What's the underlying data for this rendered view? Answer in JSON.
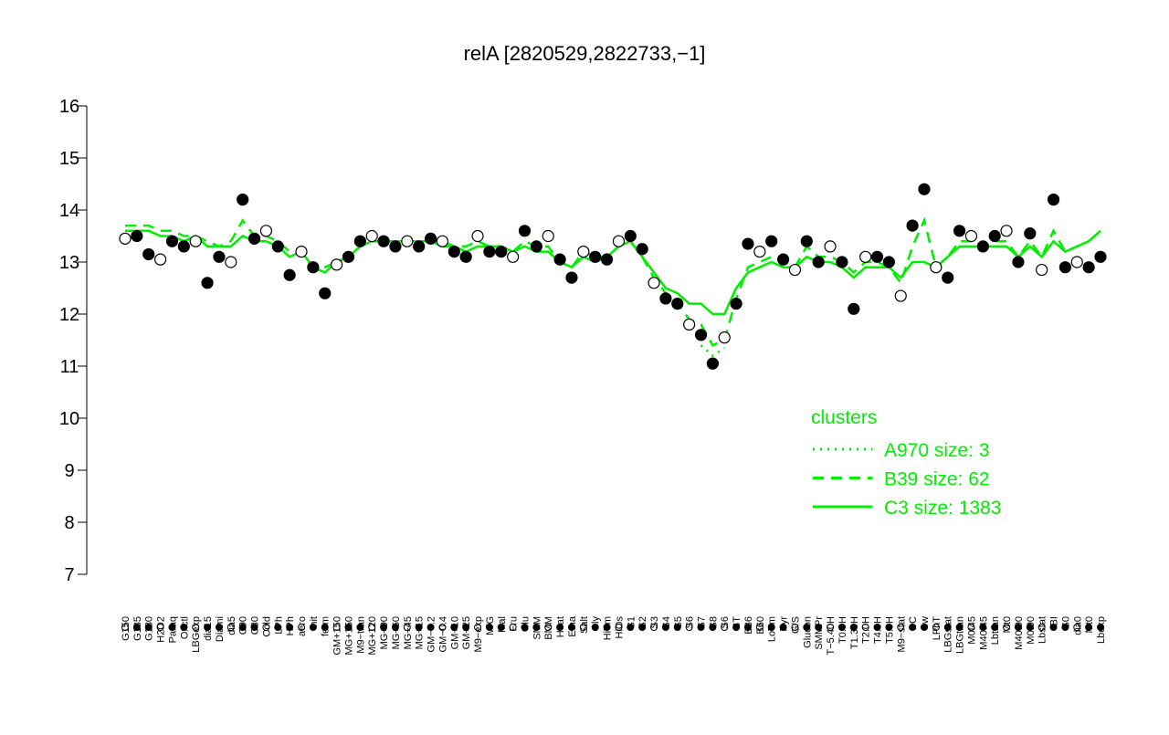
{
  "chart_data": {
    "type": "scatter",
    "title": "relA [2820529,2822733,−1]",
    "categories": [
      "G150",
      "G135",
      "G180",
      "H2O2",
      "Paraq",
      "Oxctl",
      "LBGexp",
      "dia15",
      "Diami",
      "dia5",
      "C90",
      "C30",
      "Cold",
      "LPh",
      "HPh",
      "aero",
      "nit",
      "ferm",
      "GM+150",
      "MG+150",
      "M9−tran",
      "MG+120",
      "MG+90",
      "MG+60",
      "MG+45",
      "MG+15",
      "GM−0.2",
      "GM−0.4",
      "GM+10",
      "GM+25",
      "M9−exp",
      "M/G",
      "Mal",
      "Fru",
      "Glu",
      "SMM",
      "BMM",
      "Heat",
      "Etha",
      "Salt",
      "Gly",
      "HiTm",
      "HiOs",
      "S1",
      "S2",
      "S3",
      "S4",
      "S5",
      "S6",
      "S7",
      "S8",
      "S6",
      "BT",
      "B36",
      "B60",
      "LoTm",
      "Pyr",
      "G/S",
      "Glucon",
      "SMMPr",
      "T−5.40H",
      "T0.0H",
      "T1.30H",
      "T2.0H",
      "T4.0H",
      "T5.0H",
      "M9−stat",
      "BC",
      "Sw",
      "LPhT",
      "LBGstat",
      "LBGtran",
      "M0t45",
      "M40t45",
      "Lbtran",
      "Mt0",
      "M40t90",
      "M0t90",
      "Lbstat",
      "BI",
      "S0",
      "dia0",
      "Mt0",
      "Lbexp"
    ],
    "values": [
      13.45,
      13.5,
      13.15,
      13.05,
      13.4,
      13.3,
      13.4,
      12.6,
      13.1,
      13.0,
      14.2,
      13.45,
      13.6,
      13.3,
      12.75,
      13.2,
      12.9,
      12.4,
      12.95,
      13.1,
      13.4,
      13.5,
      13.4,
      13.3,
      13.4,
      13.3,
      13.45,
      13.4,
      13.2,
      13.1,
      13.5,
      13.2,
      13.2,
      13.1,
      13.6,
      13.3,
      13.5,
      13.05,
      12.7,
      13.2,
      13.1,
      13.05,
      13.4,
      13.5,
      13.25,
      12.6,
      12.3,
      12.2,
      11.8,
      11.6,
      11.05,
      11.55,
      12.2,
      13.35,
      13.2,
      13.4,
      13.05,
      12.85,
      13.4,
      13.0,
      13.3,
      13.0,
      12.1,
      13.1,
      13.1,
      13.0,
      12.35,
      13.7,
      14.4,
      12.9,
      12.7,
      13.6,
      13.5,
      13.3,
      13.5,
      13.6,
      13.0,
      13.55,
      12.85,
      14.2,
      12.9,
      13.0,
      12.9,
      13.1
    ],
    "legend_title": "clusters",
    "legend_color": "#00ee00",
    "series": [
      {
        "name": "A970 size: 3",
        "color": "#00ee00",
        "dash": "2,6",
        "values": [
          null,
          null,
          null,
          null,
          null,
          null,
          null,
          null,
          null,
          null,
          null,
          null,
          null,
          null,
          null,
          null,
          null,
          null,
          null,
          null,
          null,
          null,
          null,
          null,
          null,
          null,
          null,
          null,
          null,
          null,
          null,
          null,
          null,
          null,
          null,
          null,
          null,
          null,
          null,
          null,
          null,
          null,
          null,
          null,
          null,
          null,
          null,
          null,
          null,
          11.4,
          11.2,
          11.35,
          null,
          null,
          null,
          null,
          null,
          null,
          null,
          null,
          null,
          null,
          null,
          null,
          null,
          null,
          null,
          null,
          null,
          null,
          null,
          null,
          null,
          null,
          null,
          null,
          null,
          null,
          null,
          null,
          null,
          null,
          null,
          null
        ]
      },
      {
        "name": "B39 size: 62",
        "color": "#00ee00",
        "dash": "12,8",
        "values": [
          13.7,
          13.7,
          13.7,
          13.6,
          13.6,
          13.5,
          13.5,
          13.4,
          13.3,
          13.4,
          13.8,
          13.5,
          13.5,
          13.4,
          13.2,
          13.2,
          12.9,
          12.9,
          13.0,
          13.1,
          13.3,
          13.4,
          13.4,
          13.4,
          13.4,
          13.4,
          13.4,
          13.4,
          13.3,
          13.3,
          13.4,
          13.3,
          13.3,
          13.2,
          13.4,
          13.3,
          13.3,
          13.0,
          12.9,
          13.2,
          13.1,
          13.1,
          13.3,
          13.4,
          13.1,
          12.7,
          12.4,
          12.2,
          11.9,
          11.8,
          11.4,
          11.5,
          12.3,
          12.9,
          13.0,
          13.1,
          13.0,
          12.9,
          13.3,
          13.1,
          13.1,
          13.0,
          12.8,
          13.0,
          13.0,
          12.9,
          12.6,
          13.3,
          13.8,
          12.9,
          13.1,
          13.4,
          13.4,
          13.3,
          13.4,
          13.4,
          13.1,
          13.4,
          13.1,
          13.6,
          13.2,
          13.3,
          13.4,
          13.6
        ]
      },
      {
        "name": "C3 size: 1383",
        "color": "#00ee00",
        "dash": "",
        "values": [
          13.6,
          13.6,
          13.6,
          13.5,
          13.5,
          13.4,
          13.5,
          13.3,
          13.3,
          13.3,
          13.5,
          13.4,
          13.4,
          13.3,
          13.1,
          13.2,
          12.9,
          12.8,
          13.0,
          13.1,
          13.3,
          13.4,
          13.4,
          13.4,
          13.4,
          13.4,
          13.4,
          13.3,
          13.3,
          13.2,
          13.3,
          13.3,
          13.3,
          13.2,
          13.3,
          13.2,
          13.2,
          13.0,
          12.9,
          13.1,
          13.0,
          13.1,
          13.3,
          13.4,
          13.1,
          12.8,
          12.5,
          12.4,
          12.2,
          12.2,
          12.0,
          12.0,
          12.5,
          12.8,
          12.9,
          13.0,
          12.9,
          12.9,
          13.1,
          13.0,
          13.0,
          12.9,
          12.7,
          12.9,
          12.9,
          12.9,
          12.7,
          13.0,
          13.0,
          12.9,
          13.1,
          13.3,
          13.3,
          13.3,
          13.3,
          13.3,
          13.1,
          13.3,
          13.1,
          13.4,
          13.2,
          13.3,
          13.4,
          13.6
        ]
      }
    ],
    "ylim": [
      7,
      16
    ],
    "yticks": [
      7,
      8,
      9,
      10,
      11,
      12,
      13,
      14,
      15,
      16
    ]
  }
}
